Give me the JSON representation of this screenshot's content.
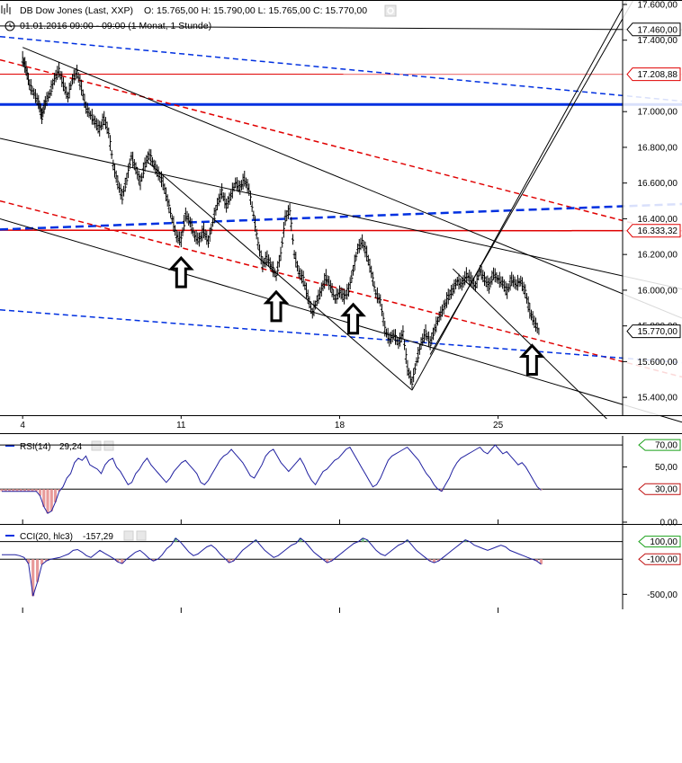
{
  "colors": {
    "candle": "#000000",
    "trend_black": "#000000",
    "trend_red": "#e00000",
    "trend_blue": "#0030e0",
    "indicator_line": "#2020a0",
    "oversold_fill": "#e89a9a",
    "overbought_fill": "#7ad08a",
    "up_tag_border": "#19a019",
    "down_tag_border": "#c01010"
  },
  "header": {
    "title": "DB Dow Jones (Last, XXP)",
    "ohlc": "O: 15.765,00  H: 15.790,00  L: 15.765,00  C: 15.770,00",
    "subtitle": "01.01.2016 09:00 - 09:00 (1 Monat, 1 Stunde)"
  },
  "chart_data": [
    {
      "type": "line",
      "name": "price",
      "y_ticks": [
        {
          "v": 17600,
          "label": "17.600,00"
        },
        {
          "v": 17400,
          "label": "17.400,00"
        },
        {
          "v": 17000,
          "label": "17.000,00"
        },
        {
          "v": 16800,
          "label": "16.800,00"
        },
        {
          "v": 16600,
          "label": "16.600,00"
        },
        {
          "v": 16400,
          "label": "16.400,00"
        },
        {
          "v": 16200,
          "label": "16.200,00"
        },
        {
          "v": 16000,
          "label": "16.000,00"
        },
        {
          "v": 15800,
          "label": "15.800,00"
        },
        {
          "v": 15600,
          "label": "15.600,00"
        },
        {
          "v": 15400,
          "label": "15.400,00"
        }
      ],
      "ylim": [
        15300,
        17620
      ],
      "x_ticks": [
        {
          "t": 4,
          "label": "4"
        },
        {
          "t": 11,
          "label": "11"
        },
        {
          "t": 18,
          "label": "18"
        },
        {
          "t": 25,
          "label": "25"
        }
      ],
      "xlim": [
        3.0,
        30.5
      ],
      "series_path": [
        [
          4.0,
          17290
        ],
        [
          4.15,
          17240
        ],
        [
          4.3,
          17150
        ],
        [
          4.5,
          17100
        ],
        [
          4.7,
          17050
        ],
        [
          4.85,
          16970
        ],
        [
          5.0,
          17050
        ],
        [
          5.2,
          17100
        ],
        [
          5.4,
          17180
        ],
        [
          5.6,
          17230
        ],
        [
          5.8,
          17150
        ],
        [
          6.0,
          17080
        ],
        [
          6.2,
          17180
        ],
        [
          6.4,
          17220
        ],
        [
          6.6,
          17130
        ],
        [
          6.8,
          17020
        ],
        [
          7.0,
          16980
        ],
        [
          7.2,
          16940
        ],
        [
          7.4,
          16900
        ],
        [
          7.6,
          16960
        ],
        [
          7.8,
          16880
        ],
        [
          8.0,
          16700
        ],
        [
          8.2,
          16600
        ],
        [
          8.4,
          16520
        ],
        [
          8.6,
          16620
        ],
        [
          8.8,
          16750
        ],
        [
          9.0,
          16680
        ],
        [
          9.2,
          16600
        ],
        [
          9.4,
          16700
        ],
        [
          9.6,
          16760
        ],
        [
          9.8,
          16700
        ],
        [
          10.0,
          16650
        ],
        [
          10.2,
          16600
        ],
        [
          10.4,
          16500
        ],
        [
          10.6,
          16400
        ],
        [
          10.8,
          16300
        ],
        [
          11.0,
          16280
        ],
        [
          11.2,
          16420
        ],
        [
          11.4,
          16380
        ],
        [
          11.6,
          16300
        ],
        [
          11.8,
          16280
        ],
        [
          12.0,
          16330
        ],
        [
          12.2,
          16270
        ],
        [
          12.4,
          16380
        ],
        [
          12.6,
          16480
        ],
        [
          12.8,
          16550
        ],
        [
          13.0,
          16470
        ],
        [
          13.2,
          16530
        ],
        [
          13.4,
          16600
        ],
        [
          13.6,
          16570
        ],
        [
          13.8,
          16620
        ],
        [
          14.0,
          16560
        ],
        [
          14.2,
          16420
        ],
        [
          14.4,
          16260
        ],
        [
          14.6,
          16140
        ],
        [
          14.8,
          16180
        ],
        [
          15.0,
          16130
        ],
        [
          15.2,
          16080
        ],
        [
          15.4,
          16200
        ],
        [
          15.6,
          16400
        ],
        [
          15.8,
          16450
        ],
        [
          16.0,
          16200
        ],
        [
          16.2,
          16100
        ],
        [
          16.4,
          16060
        ],
        [
          16.6,
          15960
        ],
        [
          16.8,
          15870
        ],
        [
          17.0,
          15940
        ],
        [
          17.2,
          16000
        ],
        [
          17.4,
          16070
        ],
        [
          17.6,
          16020
        ],
        [
          17.8,
          15950
        ],
        [
          18.0,
          15990
        ],
        [
          18.2,
          15960
        ],
        [
          18.4,
          16000
        ],
        [
          18.6,
          16110
        ],
        [
          18.8,
          16230
        ],
        [
          19.0,
          16270
        ],
        [
          19.2,
          16200
        ],
        [
          19.4,
          16100
        ],
        [
          19.6,
          15980
        ],
        [
          19.8,
          15940
        ],
        [
          20.0,
          15780
        ],
        [
          20.2,
          15720
        ],
        [
          20.4,
          15750
        ],
        [
          20.6,
          15700
        ],
        [
          20.8,
          15760
        ],
        [
          21.0,
          15560
        ],
        [
          21.2,
          15480
        ],
        [
          21.4,
          15600
        ],
        [
          21.6,
          15700
        ],
        [
          21.8,
          15760
        ],
        [
          22.0,
          15700
        ],
        [
          22.2,
          15780
        ],
        [
          22.4,
          15850
        ],
        [
          22.6,
          15900
        ],
        [
          22.8,
          15960
        ],
        [
          23.0,
          16000
        ],
        [
          23.2,
          16050
        ],
        [
          23.4,
          16030
        ],
        [
          23.6,
          16080
        ],
        [
          23.8,
          16060
        ],
        [
          24.0,
          16020
        ],
        [
          24.2,
          16110
        ],
        [
          24.4,
          16060
        ],
        [
          24.6,
          16020
        ],
        [
          24.8,
          16090
        ],
        [
          25.0,
          16060
        ],
        [
          25.2,
          16040
        ],
        [
          25.4,
          15990
        ],
        [
          25.6,
          16060
        ],
        [
          25.8,
          16030
        ],
        [
          26.0,
          16050
        ],
        [
          26.2,
          15990
        ],
        [
          26.4,
          15880
        ],
        [
          26.6,
          15820
        ],
        [
          26.8,
          15770
        ]
      ],
      "trendlines": [
        {
          "color": "black",
          "style": "solid",
          "width": 1,
          "points": [
            [
              3.0,
              17480
            ],
            [
              30.5,
              17460
            ]
          ]
        },
        {
          "color": "red",
          "style": "solid",
          "width": 1,
          "points": [
            [
              3.0,
              17210
            ],
            [
              30.5,
              17209
            ]
          ]
        },
        {
          "color": "blue",
          "style": "solid",
          "width": 3,
          "points": [
            [
              3.0,
              17040
            ],
            [
              30.5,
              17040
            ]
          ]
        },
        {
          "color": "red",
          "style": "solid",
          "width": 1.5,
          "points": [
            [
              3.0,
              16336
            ],
            [
              30.5,
              16333
            ]
          ]
        },
        {
          "color": "blue",
          "style": "dashed",
          "width": 1.5,
          "points": [
            [
              3.0,
              17420
            ],
            [
              30.5,
              17090
            ]
          ]
        },
        {
          "color": "red",
          "style": "dashed",
          "width": 1.5,
          "points": [
            [
              3.0,
              17290
            ],
            [
              30.5,
              16390
            ]
          ]
        },
        {
          "color": "blue",
          "style": "dashed",
          "width": 2.5,
          "points": [
            [
              3.0,
              16340
            ],
            [
              30.5,
              16470
            ]
          ]
        },
        {
          "color": "red",
          "style": "dashed",
          "width": 1.5,
          "points": [
            [
              3.0,
              16500
            ],
            [
              30.5,
              15600
            ]
          ]
        },
        {
          "color": "blue",
          "style": "dashed",
          "width": 1.5,
          "points": [
            [
              3.0,
              15890
            ],
            [
              30.5,
              15620
            ]
          ]
        },
        {
          "color": "black",
          "style": "solid",
          "width": 1,
          "points": [
            [
              4.0,
              17360
            ],
            [
              30.5,
              15980
            ]
          ]
        },
        {
          "color": "black",
          "style": "solid",
          "width": 1,
          "points": [
            [
              3.0,
              16850
            ],
            [
              30.5,
              16080
            ]
          ]
        },
        {
          "color": "black",
          "style": "solid",
          "width": 1,
          "points": [
            [
              3.0,
              16400
            ],
            [
              30.5,
              15360
            ]
          ]
        },
        {
          "color": "black",
          "style": "solid",
          "width": 1,
          "points": [
            [
              9.5,
              16720
            ],
            [
              21.2,
              15440
            ]
          ]
        },
        {
          "color": "black",
          "style": "solid",
          "width": 1,
          "points": [
            [
              21.2,
              15440
            ],
            [
              30.5,
              17580
            ]
          ]
        },
        {
          "color": "black",
          "style": "solid",
          "width": 1,
          "points": [
            [
              22.0,
              15640
            ],
            [
              30.5,
              17520
            ]
          ]
        },
        {
          "color": "black",
          "style": "solid",
          "width": 1,
          "points": [
            [
              23.0,
              16120
            ],
            [
              29.8,
              15280
            ]
          ]
        }
      ],
      "annotations": [
        {
          "type": "arrow-up",
          "t": 11.0,
          "y": 16180
        },
        {
          "type": "arrow-up",
          "t": 15.2,
          "y": 15990
        },
        {
          "type": "arrow-up",
          "t": 18.6,
          "y": 15920
        },
        {
          "type": "arrow-up",
          "t": 26.5,
          "y": 15690
        }
      ],
      "right_tags": [
        {
          "label": "17.460,00",
          "v": 17460,
          "style": "black"
        },
        {
          "label": "17.208,88",
          "v": 17209,
          "style": "red"
        },
        {
          "label": "16.333,32",
          "v": 16333,
          "style": "red"
        },
        {
          "label": "15.770,00",
          "v": 15770,
          "style": "last"
        }
      ]
    },
    {
      "type": "line",
      "name": "rsi",
      "title": "RSI(14)",
      "value": "29,24",
      "ylim": [
        0,
        75
      ],
      "y_ticks": [
        {
          "v": 70,
          "label": "70,00"
        },
        {
          "v": 50,
          "label": "50,00"
        },
        {
          "v": 30,
          "label": "30,00"
        },
        {
          "v": 0,
          "label": "0.00"
        }
      ],
      "levels": [
        70,
        30
      ],
      "values": [
        28,
        28,
        28,
        28,
        28,
        28,
        28,
        28,
        28,
        28,
        24,
        14,
        8,
        10,
        18,
        28,
        32,
        40,
        44,
        54,
        58,
        56,
        60,
        52,
        50,
        48,
        44,
        52,
        56,
        58,
        50,
        46,
        40,
        34,
        36,
        44,
        48,
        54,
        58,
        52,
        48,
        44,
        40,
        36,
        40,
        46,
        50,
        54,
        56,
        52,
        48,
        44,
        36,
        34,
        38,
        44,
        50,
        56,
        60,
        62,
        66,
        62,
        58,
        54,
        48,
        42,
        40,
        46,
        52,
        60,
        64,
        66,
        60,
        54,
        50,
        46,
        50,
        54,
        58,
        52,
        44,
        38,
        34,
        40,
        46,
        48,
        52,
        56,
        58,
        62,
        66,
        68,
        62,
        56,
        50,
        44,
        38,
        32,
        34,
        40,
        48,
        56,
        60,
        62,
        64,
        66,
        68,
        64,
        60,
        56,
        50,
        44,
        40,
        34,
        30,
        28,
        34,
        40,
        48,
        54,
        58,
        60,
        62,
        64,
        66,
        68,
        64,
        62,
        66,
        70,
        66,
        62,
        64,
        60,
        56,
        52,
        54,
        50,
        44,
        38,
        32,
        29
      ]
    },
    {
      "type": "line",
      "name": "cci",
      "title": "CCI(20, hlc3)",
      "value": "-157,29",
      "ylim": [
        -650,
        250
      ],
      "y_ticks": [
        {
          "v": 100,
          "label": "100,00"
        },
        {
          "v": -100,
          "label": "-100,00"
        },
        {
          "v": -500,
          "label": "-500,00"
        }
      ],
      "levels": [
        100,
        -100
      ],
      "values": [
        -50,
        -50,
        -50,
        -50,
        -60,
        -80,
        -150,
        -520,
        -360,
        -160,
        -120,
        -100,
        -90,
        -80,
        -60,
        -40,
        0,
        10,
        -20,
        -60,
        -80,
        -40,
        0,
        -30,
        -60,
        -90,
        -130,
        -150,
        -100,
        -60,
        -20,
        0,
        -40,
        -90,
        -120,
        -100,
        -50,
        20,
        60,
        140,
        100,
        40,
        -20,
        -60,
        -40,
        0,
        40,
        60,
        20,
        -40,
        -90,
        -140,
        -120,
        -60,
        0,
        40,
        80,
        120,
        60,
        0,
        -40,
        -80,
        -60,
        -20,
        20,
        60,
        80,
        140,
        100,
        40,
        -20,
        -60,
        -100,
        -140,
        -120,
        -80,
        -40,
        0,
        40,
        80,
        100,
        140,
        120,
        60,
        0,
        -40,
        -60,
        -20,
        20,
        60,
        80,
        120,
        60,
        0,
        -40,
        -80,
        -120,
        -140,
        -120,
        -80,
        -40,
        0,
        40,
        80,
        120,
        100,
        60,
        40,
        20,
        0,
        20,
        40,
        60,
        40,
        0,
        -20,
        -40,
        -60,
        -80,
        -100,
        -120,
        -157
      ]
    }
  ]
}
